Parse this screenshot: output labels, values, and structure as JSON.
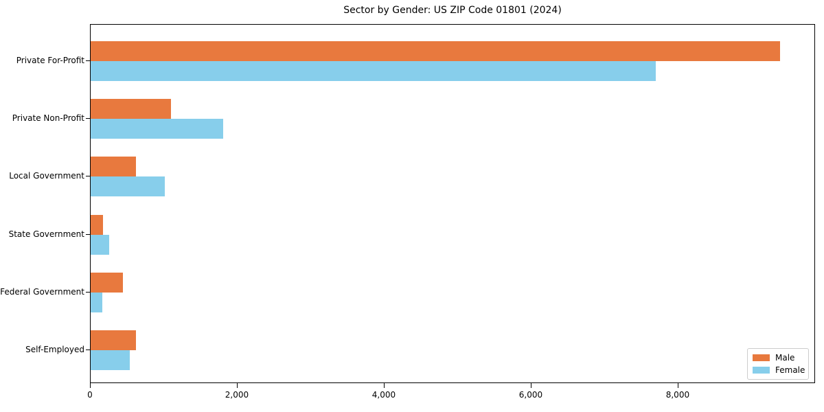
{
  "chart_data": {
    "type": "bar",
    "orientation": "horizontal",
    "title": "Sector by Gender: US ZIP Code 01801 (2024)",
    "categories": [
      "Private For-Profit",
      "Private Non-Profit",
      "Local Government",
      "State Government",
      "Federal Government",
      "Self-Employed"
    ],
    "series": [
      {
        "name": "Male",
        "color": "#e8793e",
        "values": [
          9400,
          1100,
          615,
          165,
          440,
          620
        ]
      },
      {
        "name": "Female",
        "color": "#87ceeb",
        "values": [
          7710,
          1810,
          1010,
          250,
          155,
          535
        ]
      }
    ],
    "xlabel": "",
    "ylabel": "",
    "xlim": [
      0,
      9870
    ],
    "xticks": {
      "values": [
        0,
        2000,
        4000,
        6000,
        8000
      ],
      "labels": [
        "0",
        "2,000",
        "4,000",
        "6,000",
        "8,000"
      ]
    },
    "grid": false,
    "legend": {
      "position": "lower right",
      "entries": [
        "Male",
        "Female"
      ]
    }
  }
}
